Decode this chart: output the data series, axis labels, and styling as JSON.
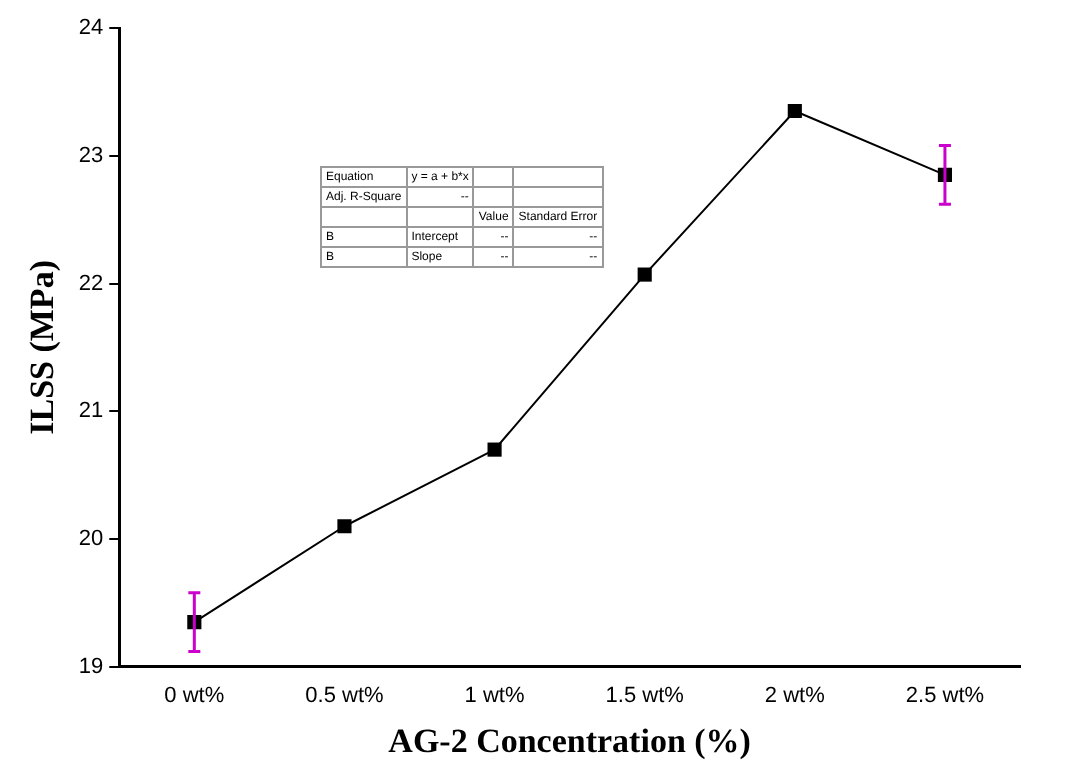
{
  "chart_data": {
    "type": "line",
    "xlabel": "AG-2 Concentration (%)",
    "ylabel": "ILSS (MPa)",
    "categories": [
      "0 wt%",
      "0.5 wt%",
      "1 wt%",
      "1.5 wt%",
      "2 wt%",
      "2.5 wt%"
    ],
    "series": [
      {
        "color": "#000000",
        "values": [
          19.35,
          20.1,
          20.7,
          22.07,
          23.35,
          22.85
        ],
        "errors": [
          0.23,
          null,
          null,
          null,
          null,
          0.23
        ]
      }
    ],
    "ylim": [
      19,
      24
    ],
    "yticks": [
      19,
      20,
      21,
      22,
      23,
      24
    ],
    "grid": false,
    "legend": false,
    "marker": "square",
    "line_style": "solid",
    "annotations": [
      "Equation",
      "y = a + b*x",
      "Adj. R-Square",
      "--",
      "Value",
      "Standard Error",
      "B",
      "Intercept",
      "--",
      "--",
      "B",
      "Slope",
      "--",
      "--"
    ]
  }
}
